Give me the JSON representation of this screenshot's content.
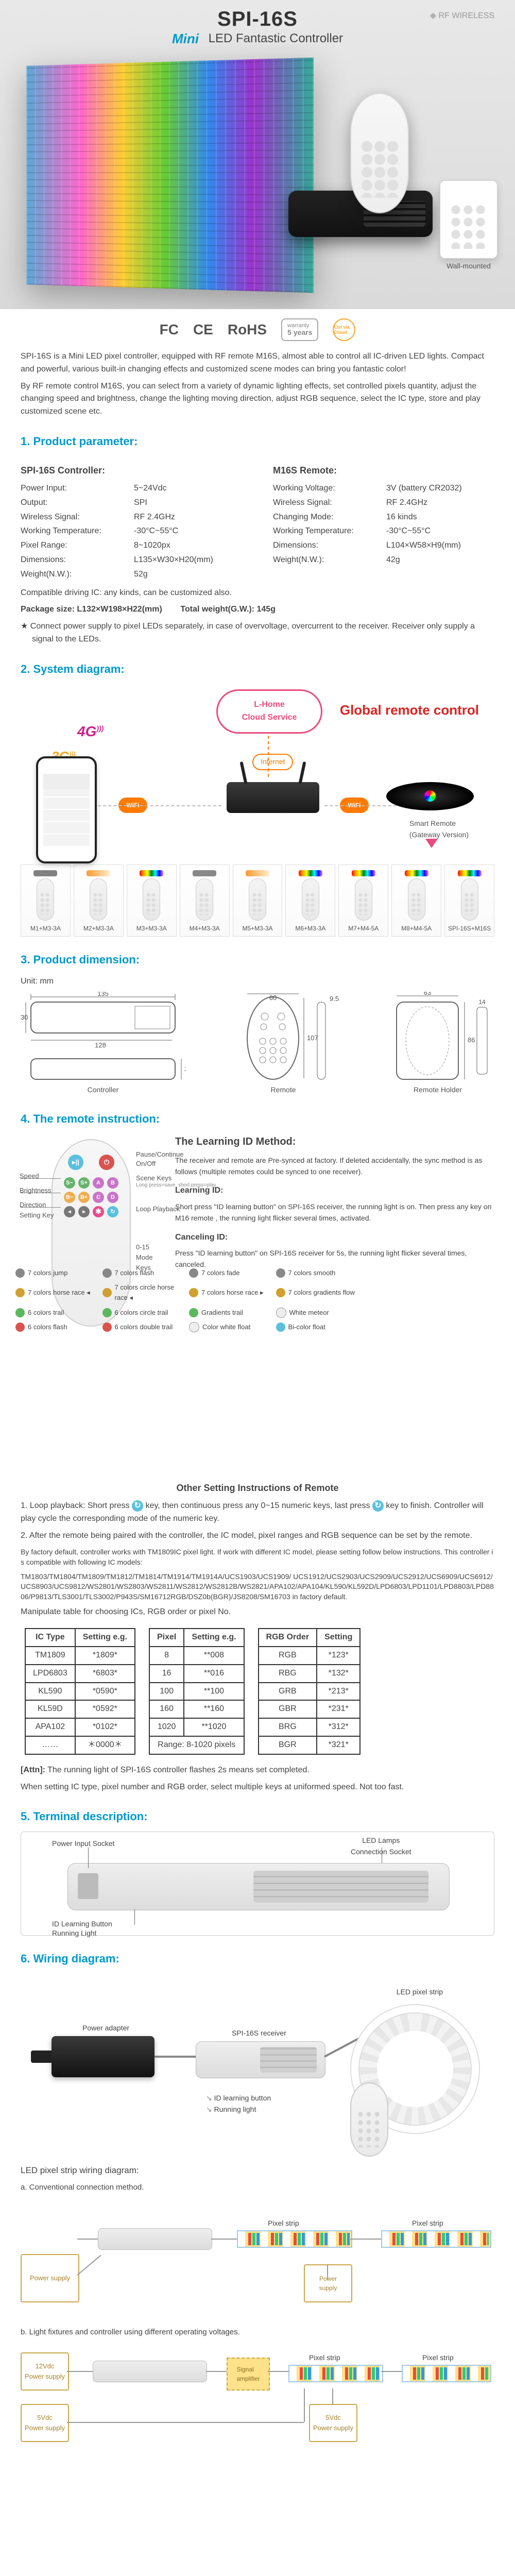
{
  "hero": {
    "model": "SPI-16S",
    "mini": "Mini",
    "subtitle": "LED Fantastic Controller",
    "rf": "RF WIRELESS",
    "wall_label": "Wall-mounted"
  },
  "certs": {
    "fc": "FC",
    "ce": "CE",
    "rohs": "RoHS",
    "warranty_l1": "warranty",
    "warranty_l2": "5 years",
    "ctrl": "Ctrl via Cloud"
  },
  "intro": {
    "p1": "SPI-16S is a Mini LED pixel controller, equipped with RF remote M16S, almost able to control all IC-driven LED lights. Compact and powerful, various built-in changing effects and customized scene modes can bring you fantastic color!",
    "p2": "By RF remote control M16S, you can select from a variety of dynamic lighting effects, set controlled pixels quantity, adjust the changing speed and brightness, change the lighting moving direction, adjust RGB sequence, select the IC type, store and play customized scene etc."
  },
  "s1": {
    "title": "1. Product parameter:",
    "left_h": "SPI-16S Controller:",
    "right_h": "M16S Remote:",
    "left": [
      {
        "k": "Power Input:",
        "v": "5~24Vdc"
      },
      {
        "k": "Output:",
        "v": "SPI"
      },
      {
        "k": "Wireless Signal:",
        "v": "RF 2.4GHz"
      },
      {
        "k": "Working Temperature:",
        "v": "-30°C~55°C"
      },
      {
        "k": "Pixel Range:",
        "v": "8~1020px"
      },
      {
        "k": "Dimensions:",
        "v": "L135×W30×H20(mm)"
      },
      {
        "k": "Weight(N.W.):",
        "v": "52g"
      }
    ],
    "right": [
      {
        "k": "Working Voltage:",
        "v": "3V (battery CR2032)"
      },
      {
        "k": "Wireless Signal:",
        "v": "RF 2.4GHz"
      },
      {
        "k": "Changing Mode:",
        "v": "16 kinds"
      },
      {
        "k": "Working Temperature:",
        "v": "-30°C~55°C"
      },
      {
        "k": "Dimensions:",
        "v": "L104×W58×H9(mm)"
      },
      {
        "k": "Weight(N.W.):",
        "v": "42g"
      }
    ],
    "compat": "Compatible driving IC: any kinds, can be customized also.",
    "pack_k": "Package size: L132×W198×H22(mm)",
    "pack_v": "Total weight(G.W.):  145g",
    "star": "★  Connect power supply to pixel LEDs separately, in case of overvoltage, overcurrent to the receiver. Receiver only supply a signal to the LEDs."
  },
  "s2": {
    "title": "2. System diagram:",
    "cloud_l1": "L-Home",
    "cloud_l2": "Cloud Service",
    "global": "Global remote control",
    "four_g": "4G",
    "three_g": "3G",
    "wifi": "WiFi",
    "internet": "Internet",
    "hub": "Smart Remote\n(Gateway Version)",
    "remotes": [
      {
        "label": "M1+M3-3A",
        "top": "#808080"
      },
      {
        "label": "M2+M3-3A",
        "top": "linear-gradient(90deg,#ff9933,#ffeecc)"
      },
      {
        "label": "M3+M3-3A",
        "top": "linear-gradient(90deg,red,orange,yellow,green,cyan,blue,violet)"
      },
      {
        "label": "M4+M3-3A",
        "top": "#888888"
      },
      {
        "label": "M5+M3-3A",
        "top": "linear-gradient(90deg,#ff9933,#ffeecc)"
      },
      {
        "label": "M6+M3-3A",
        "top": "linear-gradient(90deg,red,orange,yellow,green,cyan,blue,violet)"
      },
      {
        "label": "M7+M4-5A",
        "top": "linear-gradient(90deg,red,orange,yellow,green,cyan,blue,violet)"
      },
      {
        "label": "M8+M4-5A",
        "top": "linear-gradient(90deg,red,orange,yellow,green,cyan,blue,violet)"
      },
      {
        "label": "SPI-16S+M16S",
        "top": "linear-gradient(90deg,red,orange,yellow,green,cyan,blue,violet)"
      }
    ]
  },
  "s3": {
    "title": "3. Product dimension:",
    "unit": "Unit: mm",
    "labels": {
      "controller": "Controller",
      "remote": "Remote",
      "holder": "Remote Holder"
    }
  },
  "s4": {
    "title": "4. The remote instruction:",
    "learn_h": "The Learning ID Method:",
    "learn_p": "The receiver and remote are Pre-synced at factory. If deleted accidentally, the sync method is as follows (multiple remotes could be synced to one receiver).",
    "learn_id_h": "Learning ID:",
    "learn_id_p": "Short press \"ID learning button\" on SPI-16S receiver, the running light is on. Then press any key on M16 remote , the running light flicker several times, activated.",
    "cancel_h": "Canceling ID:",
    "cancel_p": "Press \"ID learning button\" on SPI-16S receiver for 5s, the running light flicker several times, canceled.",
    "leads": {
      "pause": "Pause/Continue",
      "onoff": "On/Off",
      "scene": "Scene Keys",
      "scene_sub": "Long press=save, short press=play",
      "loop": "Loop Playback",
      "modes": "0-15\nMode Keys",
      "speed": "Speed",
      "bright": "Brightness",
      "dir": "Direction",
      "set": "Setting Key"
    },
    "legend": [
      {
        "c": "#888888",
        "t": "7 colors jump"
      },
      {
        "c": "#888888",
        "t": "7 colors flash"
      },
      {
        "c": "#888888",
        "t": "7 colors fade"
      },
      {
        "c": "#888888",
        "t": "7 colors smooth"
      },
      {
        "c": "#d0a030",
        "t": "7 colors horse race ◂"
      },
      {
        "c": "#d0a030",
        "t": "7 colors circle horse race ◂"
      },
      {
        "c": "#d0a030",
        "t": "7 colors horse race ▸"
      },
      {
        "c": "#d0a030",
        "t": "7 colors gradients flow"
      },
      {
        "c": "#5cb85c",
        "t": "6 colors trail"
      },
      {
        "c": "#5cb85c",
        "t": "6 colors circle trail"
      },
      {
        "c": "#5cb85c",
        "t": "Gradients trail"
      },
      {
        "c": "#eeeeee",
        "t": "White meteor",
        "b": "1px solid #999"
      },
      {
        "c": "#d9534f",
        "t": "6 colors flash"
      },
      {
        "c": "#d9534f",
        "t": "6 colors double trail"
      },
      {
        "c": "#eeeeee",
        "t": "Color white float",
        "b": "1px solid #999"
      },
      {
        "c": "#5bc0de",
        "t": "Bi-color float"
      }
    ],
    "other_h": "Other Setting Instructions of Remote",
    "other_1a": "1.  Loop playback: Short press ",
    "other_1b": " key, then continuous press any 0~15 numeric keys, last press ",
    "other_1c": " key to finish. Controller will play cycle the corresponding mode of the numeric key.",
    "other_2": "2. After the remote being paired with the controller, the IC model, pixel ranges and RGB sequence can be set by the remote.",
    "fac_p": "By factory default, controller works with TM1809IC pixel light. If work with different IC model, please setting follow below instructions. This controller is compatible with following IC models:",
    "ic_list": "TM1803/TM1804/TM1809/TM1812/TM1814/TM1914/TM1914A/UCS1903/UCS1909/ UCS1912/UCS2903/UCS2909/UCS2912/UCS6909/UCS6912/UCS8903/UCS9812/WS2801/WS2803/WS2811/WS2812/WS2812B/WS2821/APA102/APA104/KL590/KL592D/LPD6803/LPD1101/LPD8803/LPD8806/P9813/TLS3001/TLS3002/P943S/SM16712RGB/DSZ0b(BGR)/JS8208/SM16703 in factory default.",
    "manip": "Manipulate table for choosing ICs, RGB order or pixel No.",
    "tables": {
      "ic": {
        "h": [
          "IC Type",
          "Setting e.g."
        ],
        "r": [
          [
            "TM1809",
            "*1809*"
          ],
          [
            "LPD6803",
            "*6803*"
          ],
          [
            "KL590",
            "*0590*"
          ],
          [
            "KL59D",
            "*0592*"
          ],
          [
            "APA102",
            "*0102*"
          ],
          [
            "……",
            "＊0000＊"
          ]
        ]
      },
      "px": {
        "h": [
          "Pixel",
          "Setting e.g."
        ],
        "r": [
          [
            "8",
            "**008"
          ],
          [
            "16",
            "**016"
          ],
          [
            "100",
            "**100"
          ],
          [
            "160",
            "**160"
          ],
          [
            "1020",
            "**1020"
          ],
          [
            "Range: 8-1020 pixels",
            ""
          ]
        ]
      },
      "rgb": {
        "h": [
          "RGB Order",
          "Setting"
        ],
        "r": [
          [
            "RGB",
            "*123*"
          ],
          [
            "RBG",
            "*132*"
          ],
          [
            "GRB",
            "*213*"
          ],
          [
            "GBR",
            "*231*"
          ],
          [
            "BRG",
            "*312*"
          ],
          [
            "BGR",
            "*321*"
          ]
        ]
      }
    },
    "attn_k": "[Attn]:",
    "attn_v": "The running light of SPI-16S controller flashes 2s means set completed.",
    "attn2": "When setting IC type, pixel number and RGB order, select multiple keys at uniformed speed. Not too fast."
  },
  "s5": {
    "title": "5. Terminal description:",
    "labels": {
      "power": "Power Input Socket",
      "id": "ID Learning Button",
      "run": "Running Light",
      "conn": "LED Lamps\nConnection Socket"
    }
  },
  "s6": {
    "title": "6. Wiring diagram:",
    "labels": {
      "adapter": "Power adapter",
      "recv": "SPI-16S receiver",
      "strip": "LED pixel strip",
      "idbtn": "ID learning button",
      "run": "Running light"
    },
    "strip_h": "LED pixel strip wiring diagram:",
    "cap_a": "a. Conventional connection method.",
    "cap_b": "b. Light fixtures and controller using different operating voltages.",
    "psu1": "12Vdc\nPower supply",
    "psu2": "5Vdc\nPower supply",
    "psu_a_left": "Power supply",
    "psu_a_right": "",
    "strip_lbl": "Pixel strip",
    "amp": "Signal\namplifier"
  }
}
